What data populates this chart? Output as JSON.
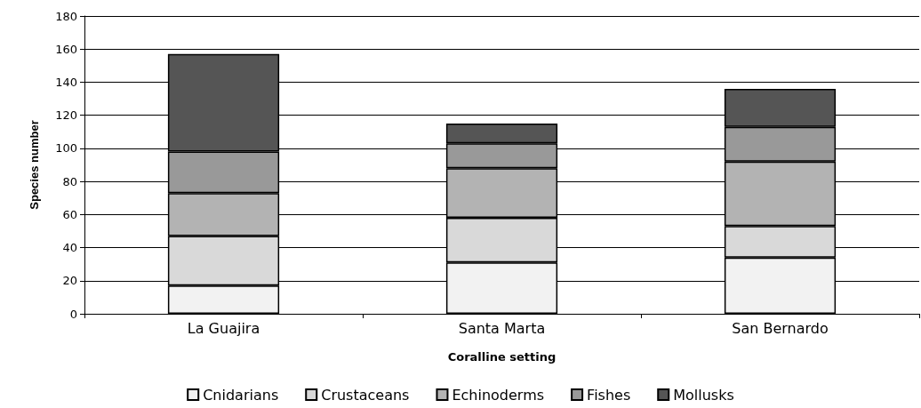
{
  "chart_data": {
    "type": "bar",
    "stacked": true,
    "xlabel": "Coralline setting",
    "ylabel": "Species number",
    "categories": [
      "La Guajira",
      "Santa Marta",
      "San Bernardo"
    ],
    "series": [
      {
        "name": "Cnidarians",
        "color": "#f2f2f2",
        "values": [
          17,
          31,
          34
        ]
      },
      {
        "name": "Crustaceans",
        "color": "#d9d9d9",
        "values": [
          30,
          27,
          19
        ]
      },
      {
        "name": "Echinoderms",
        "color": "#b3b3b3",
        "values": [
          26,
          30,
          39
        ]
      },
      {
        "name": "Fishes",
        "color": "#999999",
        "values": [
          25,
          15,
          21
        ]
      },
      {
        "name": "Mollusks",
        "color": "#555555",
        "values": [
          59,
          12,
          23
        ]
      }
    ],
    "ylim": [
      0,
      180
    ],
    "yticks": [
      0,
      20,
      40,
      60,
      80,
      100,
      120,
      140,
      160,
      180
    ],
    "grid": "y",
    "legend": "bottom"
  }
}
